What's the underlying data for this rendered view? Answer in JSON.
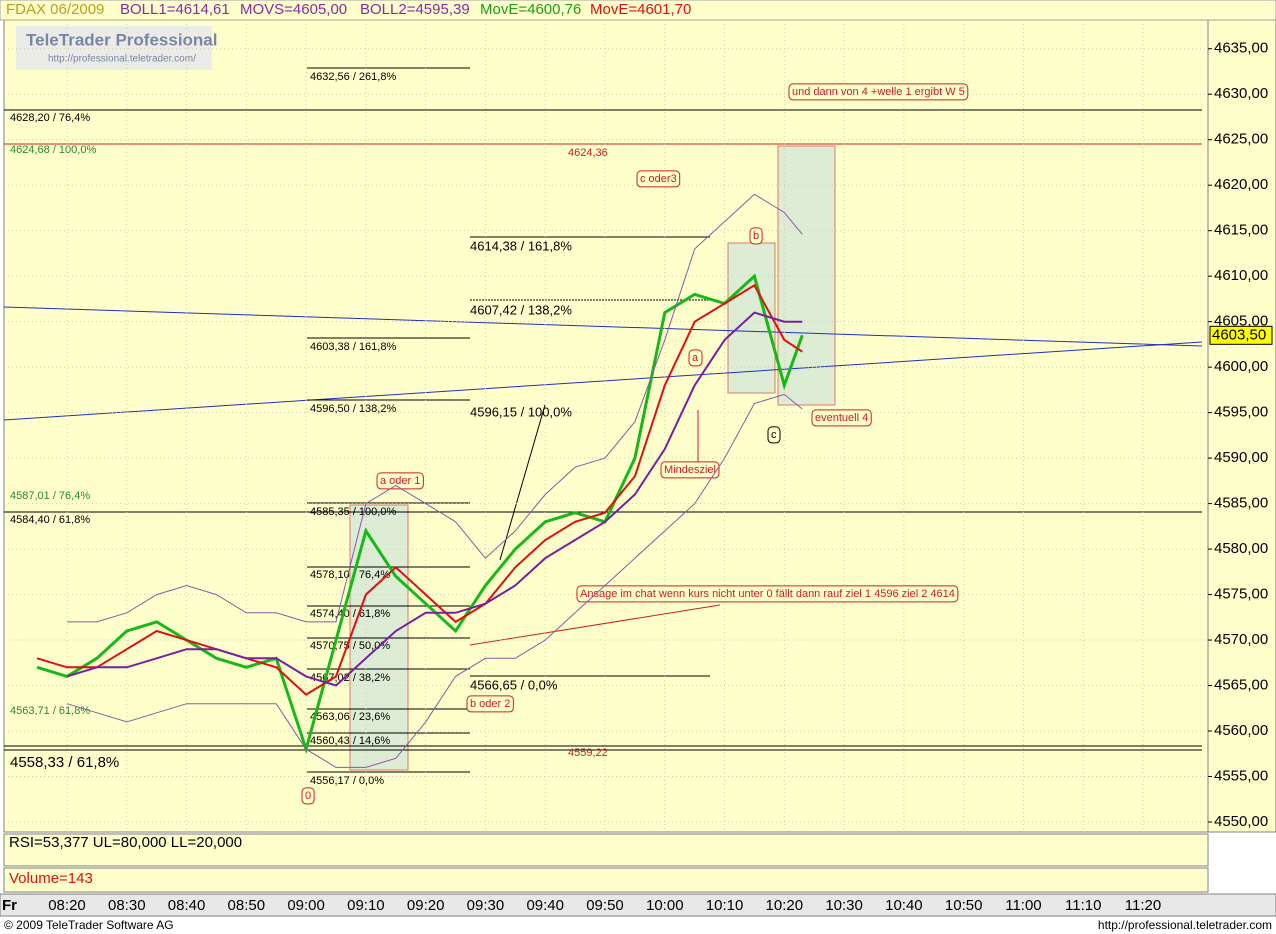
{
  "header": {
    "symbol": "FDAX 06/2009",
    "boll1": "BOLL1=4614,61",
    "movs": "MOVS=4605,00",
    "boll2": "BOLL2=4595,39",
    "move_green": "MovE=4600,76",
    "move_red": "MovE=4601,70"
  },
  "watermark": {
    "title": "TeleTrader Professional",
    "url": "http://professional.teletrader.com/"
  },
  "chart_data": {
    "type": "line",
    "x": [
      "08:15",
      "08:20",
      "08:25",
      "08:30",
      "08:35",
      "08:40",
      "08:45",
      "08:50",
      "08:55",
      "09:00",
      "09:05",
      "09:10",
      "09:15",
      "09:20",
      "09:25",
      "09:30",
      "09:35",
      "09:40",
      "09:45",
      "09:50",
      "09:55",
      "10:00",
      "10:05",
      "10:10",
      "10:15",
      "10:20",
      "10:23"
    ],
    "series": [
      {
        "color": "#18b818",
        "values": [
          4567,
          4566,
          4568,
          4571,
          4572,
          4570,
          4568,
          4567,
          4568,
          4558,
          4570,
          4582,
          4577,
          4574,
          4571,
          4576,
          4580,
          4583,
          4584,
          4583,
          4590,
          4606,
          4608,
          4607,
          4610,
          4598,
          4603.5
        ]
      },
      {
        "color": "#e01010",
        "values": [
          4568,
          4567,
          4567,
          4569,
          4571,
          4570,
          4569,
          4568,
          4567,
          4564,
          4566,
          4575,
          4578,
          4575,
          4572,
          4574,
          4578,
          4581,
          4583,
          4584,
          4588,
          4598,
          4605,
          4607,
          4609,
          4603,
          4601.7
        ]
      },
      {
        "color": "#7a1fa0",
        "values": [
          null,
          4566,
          4567,
          4567,
          4568,
          4569,
          4569,
          4568,
          4568,
          4566,
          4565,
          4568,
          4571,
          4573,
          4573,
          4574,
          4576,
          4579,
          4581,
          4583,
          4586,
          4591,
          4598,
          4603,
          4606,
          4605,
          4605
        ]
      },
      {
        "color": "#8a5aa8",
        "values": [
          null,
          4572,
          4572,
          4573,
          4575,
          4576,
          4575,
          4573,
          4573,
          4572,
          4572,
          4585,
          4587,
          4585,
          4583,
          4579,
          4582,
          4586,
          4589,
          4590,
          4594,
          4603,
          4613,
          4616,
          4619,
          4617,
          4614.6
        ]
      },
      {
        "color": "#8a5aa8",
        "values": [
          null,
          4563,
          4562,
          4561,
          4562,
          4563,
          4563,
          4563,
          4563,
          4558,
          4556,
          4556,
          4557,
          4561,
          4566,
          4568,
          4568,
          4570,
          4573,
          4576,
          4579,
          4582,
          4585,
          4590,
          4596,
          4597,
          4595.4
        ]
      }
    ],
    "ylim": [
      4550,
      4637.5
    ],
    "yticks": [
      {
        "value": 4550,
        "label": "4550,00"
      },
      {
        "value": 4555,
        "label": "4555,00"
      },
      {
        "value": 4560,
        "label": "4560,00"
      },
      {
        "value": 4565,
        "label": "4565,00"
      },
      {
        "value": 4570,
        "label": "4570,00"
      },
      {
        "value": 4575,
        "label": "4575,00"
      },
      {
        "value": 4580,
        "label": "4580,00"
      },
      {
        "value": 4585,
        "label": "4585,00"
      },
      {
        "value": 4590,
        "label": "4590,00"
      },
      {
        "value": 4595,
        "label": "4595,00"
      },
      {
        "value": 4600,
        "label": "4600,00"
      },
      {
        "value": 4605,
        "label": "4605,00"
      },
      {
        "value": 4610,
        "label": "4610,00"
      },
      {
        "value": 4615,
        "label": "4615,00"
      },
      {
        "value": 4620,
        "label": "4620,00"
      },
      {
        "value": 4625,
        "label": "4625,00"
      },
      {
        "value": 4630,
        "label": "4630,00"
      },
      {
        "value": 4635,
        "label": "4635,00"
      }
    ],
    "xticks": [
      "08:20",
      "08:30",
      "08:40",
      "08:50",
      "09:00",
      "09:10",
      "09:20",
      "09:30",
      "09:40",
      "09:50",
      "10:00",
      "10:10",
      "10:20",
      "10:30",
      "10:40",
      "10:50",
      "11:00",
      "11:10",
      "11:20"
    ],
    "day_label": "Fr",
    "last_price": {
      "value": 4603.5,
      "label": "4603,50"
    },
    "grid": true,
    "annotations": [
      "4632,56 / 261,8%",
      "4628,20 / 76,4%",
      "4624,68 / 100,0%",
      "4624,36",
      "c oder3",
      "4614,38 / 161,8%",
      "4607,42 / 138,2%",
      "4603,38 / 161,8%",
      "4596,50 / 138,2%",
      "4596,15 / 100,0%",
      "a oder 1",
      "4587,01 / 76,4%",
      "4584,40 / 61,8%",
      "4585,35 / 100,0%",
      "4578,10 / 76,4%",
      "4574,40 / 61,8%",
      "4570,75 / 50,0%",
      "4567,02 / 38,2%",
      "4563,06 / 23,6%",
      "4560,43 / 14,6%",
      "4556,17 / 0,0%",
      "4566,65 / 0,0%",
      "b oder 2",
      "4563,71 / 61,8%",
      "4558,33 / 61,8%",
      "4559,22",
      "0",
      "a",
      "b",
      "c",
      "Mindesziel",
      "eventuell 4",
      "und dann von 4 +welle 1 ergibt W 5",
      "Ansage im chat wenn kurs nicht unter 0 fällt dann rauf ziel 1 4596  ziel 2 4614"
    ]
  },
  "rsi": "RSI=53,377 UL=80,000 LL=20,000",
  "volume": "Volume=143",
  "footer": {
    "copyright": "© 2009 TeleTrader Software AG",
    "url": "http://professional.teletrader.com"
  }
}
